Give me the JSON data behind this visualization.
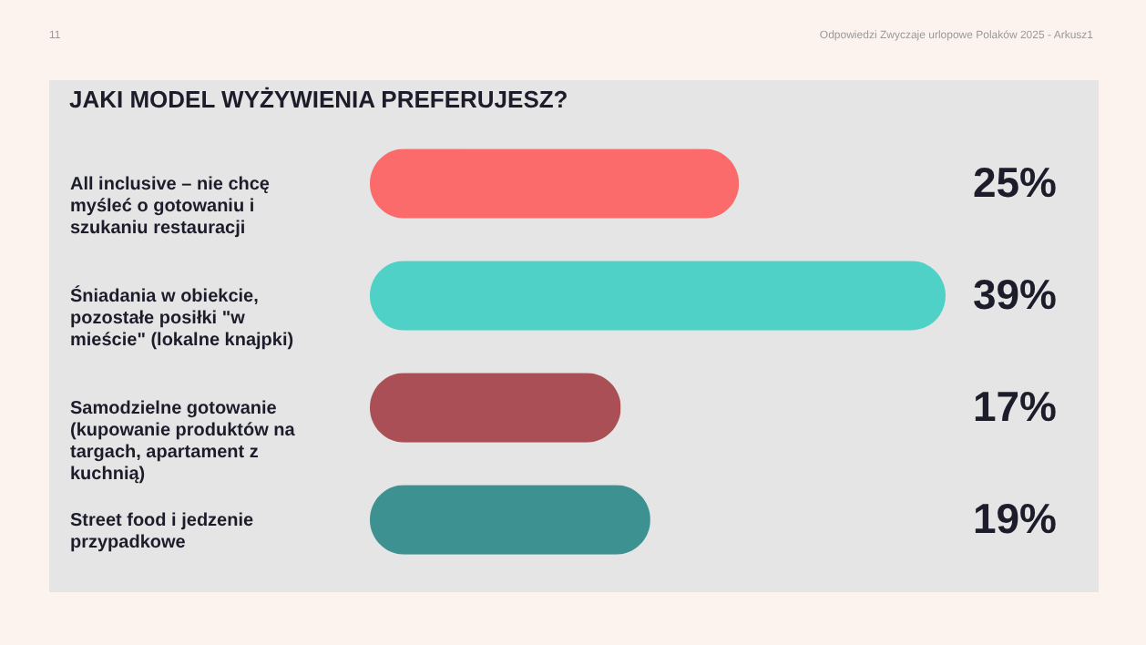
{
  "chart_data": {
    "type": "bar",
    "orientation": "horizontal",
    "tick_labels": "y",
    "title": "JAKI MODEL WYŻYWIENIA PREFERUJESZ?",
    "categories": [
      "All inclusive – nie chcę myśleć o gotowaniu i szukaniu restauracji",
      "Śniadania w obiekcie, pozostałe posiłki \"w mieście\" (lokalne knajpki)",
      "Samodzielne gotowanie (kupowanie produktów na targach, apartament z kuchnią)",
      "Street food i jedzenie przypadkowe"
    ],
    "values": [
      25,
      39,
      17,
      19
    ],
    "value_labels": [
      "25%",
      "39%",
      "17%",
      "19%"
    ],
    "colors": [
      "#fb6b6b",
      "#4fd1c7",
      "#a94f55",
      "#3d9190"
    ],
    "annotations": [
      "11",
      "Odpowiedzi Zwyczaje urlopowe Polaków 2025 - Arkusz1"
    ]
  }
}
